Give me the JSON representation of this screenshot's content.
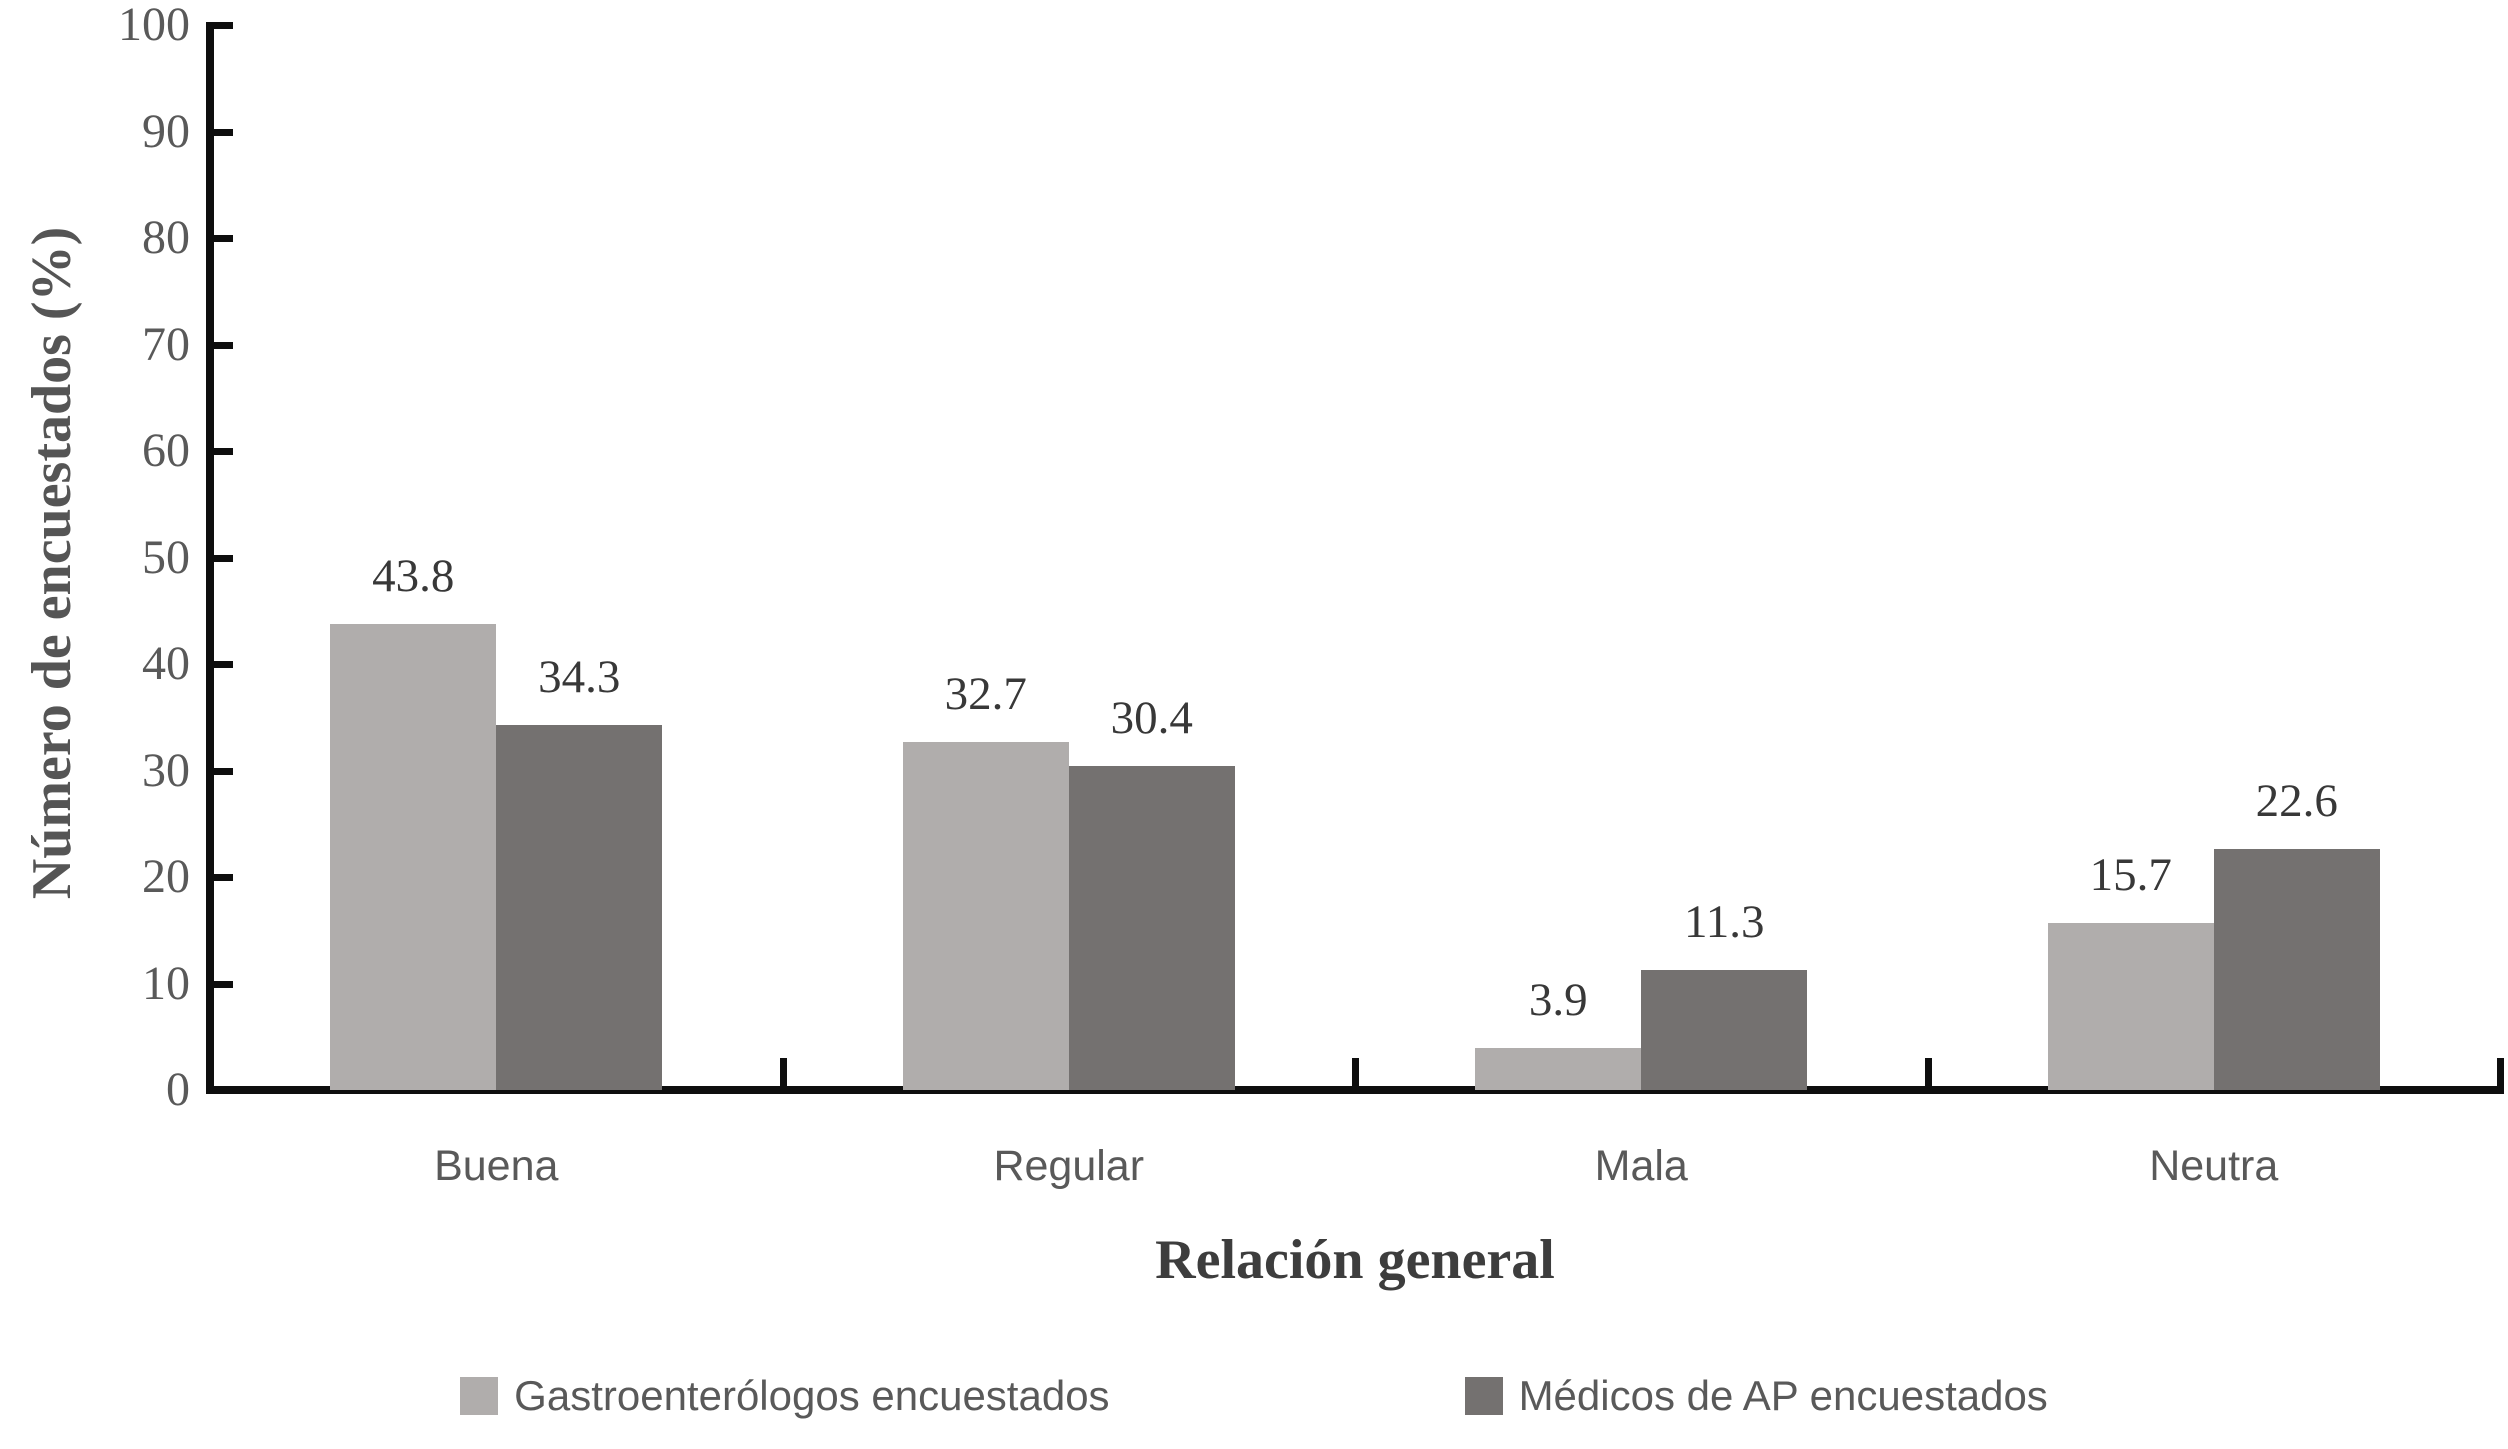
{
  "chart_data": {
    "type": "bar",
    "title": "",
    "categories": [
      "Buena",
      "Regular",
      "Mala",
      "Neutra"
    ],
    "series": [
      {
        "name": "Gastroenterólogos encuestados",
        "color": "#b0adac",
        "values": [
          43.8,
          32.7,
          3.9,
          15.7
        ]
      },
      {
        "name": "Médicos de AP encuestados",
        "color": "#747170",
        "values": [
          34.3,
          30.4,
          11.3,
          22.6
        ]
      }
    ],
    "xlabel": "Relación general",
    "ylabel": "Número de encuestados (%)",
    "ylim": [
      0,
      100
    ],
    "yticks": [
      0,
      10,
      20,
      30,
      40,
      50,
      60,
      70,
      80,
      90,
      100
    ],
    "grid": false,
    "legend_position": "bottom",
    "value_labels_shown": true,
    "axis_color": "#0e0e0e",
    "text_color": "#595959"
  }
}
